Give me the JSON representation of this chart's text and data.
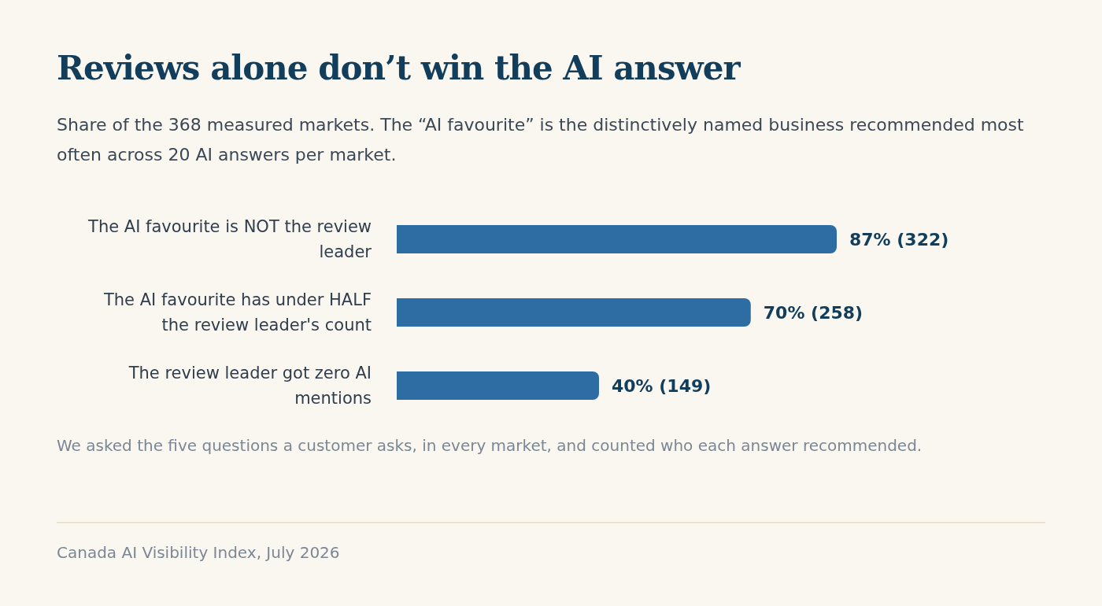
{
  "chart_data": {
    "type": "bar",
    "orientation": "horizontal",
    "title": "Reviews alone don’t win the AI answer",
    "subtitle": "Share of the 368 measured markets. The “AI favourite” is the distinctively named business recommended most often across 20 AI answers per market.",
    "categories": [
      "The AI favourite is NOT the review leader",
      "The AI favourite has under HALF the review leader's count",
      "The review leader got zero AI mentions"
    ],
    "values": [
      87,
      70,
      40
    ],
    "value_labels": [
      "87% (322)",
      "70% (258)",
      "40% (149)"
    ],
    "color": "#2e6da4",
    "annotations": [
      "We asked the five questions a customer asks, in every market, and counted who each answer recommended.",
      "Canada AI Visibility Index, July 2026"
    ]
  }
}
